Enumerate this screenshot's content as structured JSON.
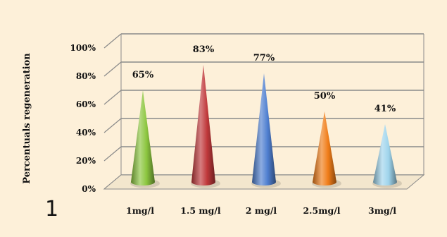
{
  "chart_data": {
    "type": "bar",
    "bar_shape": "cone",
    "categories": [
      "1mg/l",
      "1.5 mg/l",
      "2 mg/l",
      "2.5mg/l",
      "3mg/l"
    ],
    "values": [
      65,
      83,
      77,
      50,
      41
    ],
    "data_labels": [
      "65%",
      "83%",
      "77%",
      "50%",
      "41%"
    ],
    "ylabel": "Percentuals regeneration",
    "ylim": [
      0,
      100
    ],
    "yticks": [
      0,
      20,
      40,
      60,
      80,
      100
    ],
    "ytick_labels": [
      "0%",
      "20%",
      "40%",
      "60%",
      "80%",
      "100%"
    ],
    "grid": true,
    "legend": "none",
    "bar_colors": [
      "#8cc63f",
      "#c0393b",
      "#4f7fd0",
      "#f07d19",
      "#9fd4ec"
    ],
    "panel_label": "1"
  }
}
